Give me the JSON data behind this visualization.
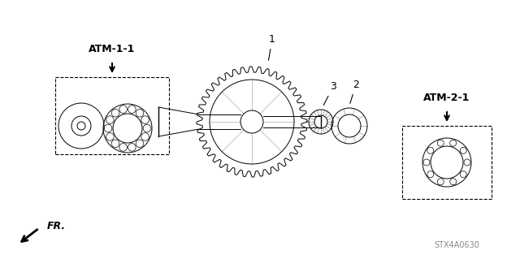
{
  "bg_color": "#ffffff",
  "line_color": "#000000",
  "diagram_color": "#333333",
  "title_font": 10,
  "label_font": 9,
  "part_label_font": 8,
  "atm1_label": "ATM-1-1",
  "atm2_label": "ATM-2-1",
  "part1_label": "1",
  "part2_label": "2",
  "part3_label": "3",
  "fr_label": "FR.",
  "code_label": "STX4A0630",
  "fig_width": 6.4,
  "fig_height": 3.19
}
